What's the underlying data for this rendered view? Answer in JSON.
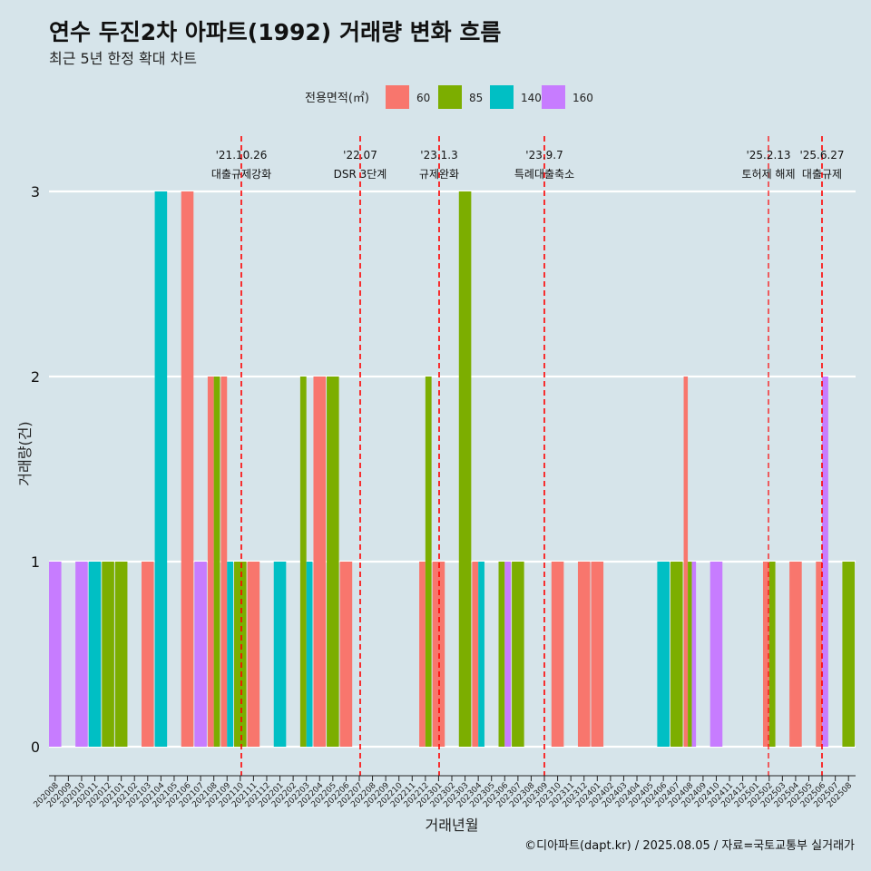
{
  "header": {
    "title": "연수 두진2차 아파트(1992) 거래량 변화 흐름",
    "subtitle": "최근 5년 한정 확대 차트"
  },
  "caption": "©디아파트(dapt.kr) / 2025.08.05 / 자료=국토교통부 실거래가",
  "chart_data": {
    "type": "bar",
    "xlabel": "거래년월",
    "ylabel": "거래량(건)",
    "ylim": [
      0,
      3
    ],
    "yticks": [
      0,
      1,
      2,
      3
    ],
    "legend": {
      "title": "전용면적(㎡)",
      "position": "top",
      "entries": [
        {
          "name": "60",
          "color": "#f8766d"
        },
        {
          "name": "85",
          "color": "#7cae00"
        },
        {
          "name": "140",
          "color": "#00bfc4"
        },
        {
          "name": "160",
          "color": "#c77cff"
        }
      ]
    },
    "categories": [
      "202008",
      "202009",
      "202010",
      "202011",
      "202012",
      "202101",
      "202102",
      "202103",
      "202104",
      "202105",
      "202106",
      "202107",
      "202108",
      "202109",
      "202110",
      "202111",
      "202112",
      "202201",
      "202202",
      "202203",
      "202204",
      "202205",
      "202206",
      "202207",
      "202208",
      "202209",
      "202210",
      "202211",
      "202212",
      "202301",
      "202302",
      "202303",
      "202304",
      "202305",
      "202306",
      "202307",
      "202308",
      "202309",
      "202310",
      "202311",
      "202312",
      "202401",
      "202402",
      "202403",
      "202404",
      "202405",
      "202406",
      "202407",
      "202408",
      "202409",
      "202410",
      "202411",
      "202412",
      "202501",
      "202502",
      "202503",
      "202504",
      "202505",
      "202506",
      "202507",
      "202508"
    ],
    "bars": [
      {
        "month": "202008",
        "values": [
          {
            "area": "160",
            "count": 1
          }
        ]
      },
      {
        "month": "202010",
        "values": [
          {
            "area": "160",
            "count": 1
          }
        ]
      },
      {
        "month": "202011",
        "values": [
          {
            "area": "140",
            "count": 1
          }
        ]
      },
      {
        "month": "202012",
        "values": [
          {
            "area": "85",
            "count": 1
          }
        ]
      },
      {
        "month": "202101",
        "values": [
          {
            "area": "85",
            "count": 1
          }
        ]
      },
      {
        "month": "202103",
        "values": [
          {
            "area": "60",
            "count": 1
          }
        ]
      },
      {
        "month": "202104",
        "values": [
          {
            "area": "140",
            "count": 3
          }
        ]
      },
      {
        "month": "202106",
        "values": [
          {
            "area": "60",
            "count": 3
          }
        ]
      },
      {
        "month": "202107",
        "values": [
          {
            "area": "160",
            "count": 1
          }
        ]
      },
      {
        "month": "202108",
        "values": [
          {
            "area": "60",
            "count": 2
          },
          {
            "area": "85",
            "count": 2
          }
        ]
      },
      {
        "month": "202109",
        "values": [
          {
            "area": "60",
            "count": 2
          },
          {
            "area": "140",
            "count": 1
          }
        ]
      },
      {
        "month": "202110",
        "values": [
          {
            "area": "85",
            "count": 1
          }
        ]
      },
      {
        "month": "202111",
        "values": [
          {
            "area": "60",
            "count": 1
          }
        ]
      },
      {
        "month": "202201",
        "values": [
          {
            "area": "140",
            "count": 1
          }
        ]
      },
      {
        "month": "202203",
        "values": [
          {
            "area": "85",
            "count": 2
          },
          {
            "area": "140",
            "count": 1
          }
        ]
      },
      {
        "month": "202204",
        "values": [
          {
            "area": "60",
            "count": 2
          }
        ]
      },
      {
        "month": "202205",
        "values": [
          {
            "area": "85",
            "count": 2
          }
        ]
      },
      {
        "month": "202206",
        "values": [
          {
            "area": "60",
            "count": 1
          }
        ]
      },
      {
        "month": "202212",
        "values": [
          {
            "area": "60",
            "count": 1
          },
          {
            "area": "85",
            "count": 2
          }
        ]
      },
      {
        "month": "202301",
        "values": [
          {
            "area": "60",
            "count": 1
          }
        ]
      },
      {
        "month": "202303",
        "values": [
          {
            "area": "85",
            "count": 3
          }
        ]
      },
      {
        "month": "202304",
        "values": [
          {
            "area": "60",
            "count": 1
          },
          {
            "area": "140",
            "count": 1
          }
        ]
      },
      {
        "month": "202306",
        "values": [
          {
            "area": "85",
            "count": 1
          },
          {
            "area": "160",
            "count": 1
          }
        ]
      },
      {
        "month": "202307",
        "values": [
          {
            "area": "85",
            "count": 1
          }
        ]
      },
      {
        "month": "202310",
        "values": [
          {
            "area": "60",
            "count": 1
          }
        ]
      },
      {
        "month": "202312",
        "values": [
          {
            "area": "60",
            "count": 1
          }
        ]
      },
      {
        "month": "202401",
        "values": [
          {
            "area": "60",
            "count": 1
          }
        ]
      },
      {
        "month": "202406",
        "values": [
          {
            "area": "140",
            "count": 1
          }
        ]
      },
      {
        "month": "202407",
        "values": [
          {
            "area": "85",
            "count": 1
          }
        ]
      },
      {
        "month": "202408",
        "values": [
          {
            "area": "60",
            "count": 2
          },
          {
            "area": "85",
            "count": 1
          },
          {
            "area": "160",
            "count": 1
          }
        ]
      },
      {
        "month": "202410",
        "values": [
          {
            "area": "160",
            "count": 1
          }
        ]
      },
      {
        "month": "202502",
        "values": [
          {
            "area": "60",
            "count": 1
          },
          {
            "area": "85",
            "count": 1
          }
        ]
      },
      {
        "month": "202504",
        "values": [
          {
            "area": "60",
            "count": 1
          }
        ]
      },
      {
        "month": "202506",
        "values": [
          {
            "area": "60",
            "count": 1
          },
          {
            "area": "160",
            "count": 2
          }
        ]
      },
      {
        "month": "202508",
        "values": [
          {
            "area": "85",
            "count": 1
          }
        ]
      }
    ],
    "annotations": [
      {
        "date": "'21.10.26",
        "label": "대출규제강화",
        "month": "202110"
      },
      {
        "date": "'22.07",
        "label": "DSR 3단계",
        "month": "202207"
      },
      {
        "date": "'23.1.3",
        "label": "규제완화",
        "month": "202301"
      },
      {
        "date": "'23.9.7",
        "label": "특례대출축소",
        "month": "202309"
      },
      {
        "date": "'25.2.13",
        "label": "토허제 해제",
        "month": "202502"
      },
      {
        "date": "'25.6.27",
        "label": "대출규제",
        "month": "202506"
      }
    ],
    "annotation_line_color": "#ff0000",
    "grid": true
  }
}
